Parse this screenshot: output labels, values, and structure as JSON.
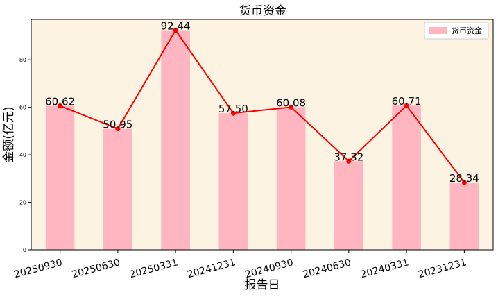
{
  "chart_data": {
    "type": "bar",
    "title": "货币资金",
    "xlabel": "报告日",
    "ylabel": "金额(亿元)",
    "categories": [
      "20250930",
      "20250630",
      "20250331",
      "20241231",
      "20240930",
      "20240630",
      "20240331",
      "20231231"
    ],
    "series": [
      {
        "name": "货币资金",
        "values": [
          60.62,
          50.95,
          92.44,
          57.5,
          60.08,
          37.32,
          60.71,
          28.34
        ],
        "labels": [
          "60.62",
          "50.95",
          "92.44",
          "57.50",
          "60.08",
          "37.32",
          "60.71",
          "28.34"
        ]
      }
    ],
    "overlay_line": true,
    "ylim": [
      0,
      97
    ],
    "yticks": [
      0,
      20,
      40,
      60,
      80
    ],
    "grid": false,
    "legend": "top-right",
    "colors": {
      "bar": "#ffb6c1",
      "line": "#ff0000",
      "plot_background": "#fdf3e3",
      "axis": "#000000"
    }
  }
}
